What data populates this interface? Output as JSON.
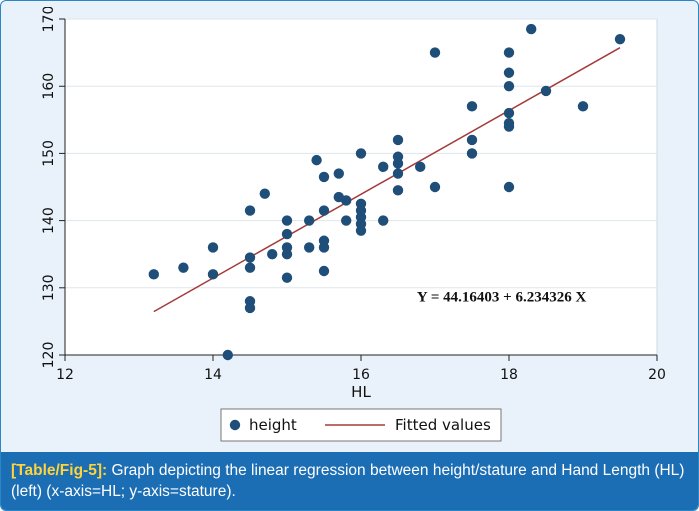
{
  "chart_data": {
    "type": "scatter",
    "xlabel": "HL",
    "ylabel": "",
    "xlim": [
      12,
      20
    ],
    "ylim": [
      120,
      170
    ],
    "xticks": [
      12,
      14,
      16,
      18,
      20
    ],
    "yticks": [
      120,
      130,
      140,
      150,
      160,
      170
    ],
    "grid": true,
    "legend_position": "bottom",
    "series": [
      {
        "name": "height",
        "kind": "points",
        "color": "#1f4e79",
        "points": [
          [
            13.2,
            132
          ],
          [
            13.6,
            133
          ],
          [
            14.0,
            136
          ],
          [
            14.0,
            132
          ],
          [
            14.2,
            120
          ],
          [
            14.5,
            141.5
          ],
          [
            14.5,
            134.5
          ],
          [
            14.5,
            133
          ],
          [
            14.5,
            128
          ],
          [
            14.5,
            127
          ],
          [
            14.7,
            144
          ],
          [
            14.8,
            135
          ],
          [
            15.0,
            140
          ],
          [
            15.0,
            138
          ],
          [
            15.0,
            136
          ],
          [
            15.0,
            135
          ],
          [
            15.0,
            131.5
          ],
          [
            15.3,
            140
          ],
          [
            15.3,
            136
          ],
          [
            15.4,
            149
          ],
          [
            15.5,
            146.5
          ],
          [
            15.5,
            141.5
          ],
          [
            15.5,
            137
          ],
          [
            15.5,
            136
          ],
          [
            15.5,
            132.5
          ],
          [
            15.7,
            147
          ],
          [
            15.7,
            143.5
          ],
          [
            15.8,
            143
          ],
          [
            15.8,
            140
          ],
          [
            16.0,
            150
          ],
          [
            16.0,
            142.5
          ],
          [
            16.0,
            141.5
          ],
          [
            16.0,
            140.5
          ],
          [
            16.0,
            139.5
          ],
          [
            16.0,
            138.5
          ],
          [
            16.3,
            148
          ],
          [
            16.3,
            140
          ],
          [
            16.5,
            152
          ],
          [
            16.5,
            149.5
          ],
          [
            16.5,
            148.5
          ],
          [
            16.5,
            147
          ],
          [
            16.5,
            144.5
          ],
          [
            16.8,
            148
          ],
          [
            17.0,
            165
          ],
          [
            17.0,
            145
          ],
          [
            17.5,
            157
          ],
          [
            17.5,
            152
          ],
          [
            17.5,
            150
          ],
          [
            18.0,
            165
          ],
          [
            18.0,
            162
          ],
          [
            18.0,
            160
          ],
          [
            18.0,
            156
          ],
          [
            18.0,
            154.5
          ],
          [
            18.0,
            154
          ],
          [
            18.0,
            145
          ],
          [
            18.3,
            168.5
          ],
          [
            18.5,
            159.3
          ],
          [
            19.0,
            157
          ],
          [
            19.5,
            167
          ]
        ]
      },
      {
        "name": "Fitted values",
        "kind": "line",
        "color": "#a53a3a",
        "intercept": 44.16403,
        "slope": 6.234326,
        "x_range": [
          13.2,
          19.5
        ]
      }
    ],
    "annotations": [
      {
        "text": "Y = 44.16403 + 6.234326 X",
        "x": 17.9,
        "y": 128.7
      }
    ]
  },
  "caption": {
    "tag": "[Table/Fig-5]:",
    "text": " Graph depicting the linear regression between height/stature and Hand Length (HL) (left) (x-axis=HL; y-axis=stature)."
  },
  "colors": {
    "frame_border": "#2a86c5",
    "outer_background": "#e9f2fa",
    "plot_background": "#ffffff",
    "caption_background": "#1b6db4",
    "caption_tag": "#ffd43b"
  }
}
